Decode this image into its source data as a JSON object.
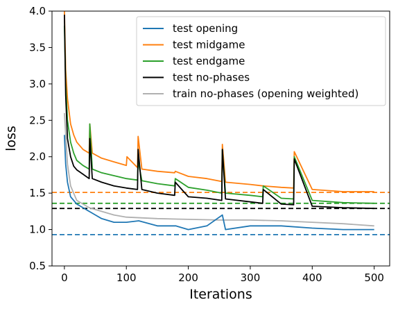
{
  "chart_data": {
    "type": "line",
    "xlabel": "Iterations",
    "ylabel": "loss",
    "xlim": [
      -20,
      525
    ],
    "ylim": [
      0.5,
      4.0
    ],
    "xticks": [
      0,
      100,
      200,
      300,
      400,
      500
    ],
    "yticks": [
      0.5,
      1.0,
      1.5,
      2.0,
      2.5,
      3.0,
      3.5,
      4.0
    ],
    "grid": false,
    "legend_position": "top-right",
    "series": [
      {
        "name": "test opening",
        "color": "#1f77b4",
        "x": [
          0,
          2,
          5,
          10,
          15,
          20,
          30,
          40,
          50,
          60,
          80,
          100,
          120,
          150,
          180,
          200,
          230,
          255,
          260,
          300,
          350,
          400,
          450,
          500
        ],
        "y": [
          2.3,
          1.9,
          1.65,
          1.45,
          1.4,
          1.35,
          1.3,
          1.25,
          1.2,
          1.15,
          1.1,
          1.1,
          1.12,
          1.05,
          1.05,
          1.0,
          1.05,
          1.2,
          1.0,
          1.05,
          1.05,
          1.02,
          1.0,
          1.0
        ]
      },
      {
        "name": "test midgame",
        "color": "#ff7f0e",
        "x": [
          0,
          2,
          5,
          10,
          15,
          20,
          30,
          40,
          41,
          45,
          60,
          80,
          100,
          101,
          118,
          119,
          125,
          150,
          178,
          179,
          200,
          230,
          254,
          255,
          260,
          300,
          320,
          350,
          370,
          371,
          400,
          450,
          500
        ],
        "y": [
          4.0,
          3.2,
          2.8,
          2.45,
          2.3,
          2.2,
          2.1,
          2.05,
          2.45,
          2.05,
          1.98,
          1.93,
          1.88,
          2.0,
          1.85,
          2.28,
          1.83,
          1.8,
          1.78,
          1.8,
          1.73,
          1.7,
          1.66,
          2.17,
          1.65,
          1.62,
          1.6,
          1.58,
          1.57,
          2.07,
          1.55,
          1.52,
          1.52
        ]
      },
      {
        "name": "test endgame",
        "color": "#2ca02c",
        "x": [
          0,
          2,
          5,
          10,
          15,
          20,
          30,
          40,
          41,
          45,
          60,
          80,
          100,
          118,
          119,
          125,
          150,
          178,
          179,
          200,
          230,
          254,
          255,
          260,
          300,
          320,
          321,
          350,
          370,
          371,
          400,
          450,
          500
        ],
        "y": [
          3.8,
          3.0,
          2.5,
          2.2,
          2.05,
          1.95,
          1.88,
          1.83,
          2.45,
          1.83,
          1.78,
          1.74,
          1.7,
          1.68,
          1.95,
          1.67,
          1.63,
          1.6,
          1.7,
          1.58,
          1.54,
          1.5,
          2.1,
          1.5,
          1.47,
          1.45,
          1.6,
          1.43,
          1.42,
          2.0,
          1.4,
          1.37,
          1.36
        ]
      },
      {
        "name": "test no-phases",
        "color": "#000000",
        "x": [
          0,
          2,
          5,
          10,
          15,
          20,
          30,
          40,
          41,
          45,
          60,
          80,
          100,
          118,
          119,
          125,
          150,
          178,
          179,
          200,
          230,
          254,
          255,
          260,
          300,
          320,
          321,
          350,
          370,
          371,
          400,
          450,
          500
        ],
        "y": [
          3.95,
          2.85,
          2.25,
          2.0,
          1.87,
          1.82,
          1.76,
          1.7,
          2.25,
          1.7,
          1.65,
          1.6,
          1.57,
          1.55,
          2.1,
          1.55,
          1.5,
          1.47,
          1.65,
          1.45,
          1.43,
          1.4,
          2.1,
          1.42,
          1.38,
          1.36,
          1.55,
          1.35,
          1.34,
          1.97,
          1.32,
          1.3,
          1.29
        ]
      },
      {
        "name": "train no-phases (opening weighted)",
        "color": "#b0b0b0",
        "x": [
          0,
          5,
          10,
          20,
          40,
          60,
          80,
          100,
          150,
          200,
          250,
          300,
          350,
          400,
          450,
          500
        ],
        "y": [
          2.6,
          1.9,
          1.6,
          1.4,
          1.3,
          1.25,
          1.2,
          1.17,
          1.15,
          1.14,
          1.13,
          1.13,
          1.12,
          1.1,
          1.08,
          1.05
        ]
      }
    ],
    "reference_lines": [
      {
        "y": 0.93,
        "color": "#1f77b4",
        "style": "dashed"
      },
      {
        "y": 1.51,
        "color": "#ff7f0e",
        "style": "dashed"
      },
      {
        "y": 1.36,
        "color": "#2ca02c",
        "style": "dashed"
      },
      {
        "y": 1.29,
        "color": "#000000",
        "style": "dashed"
      }
    ]
  }
}
